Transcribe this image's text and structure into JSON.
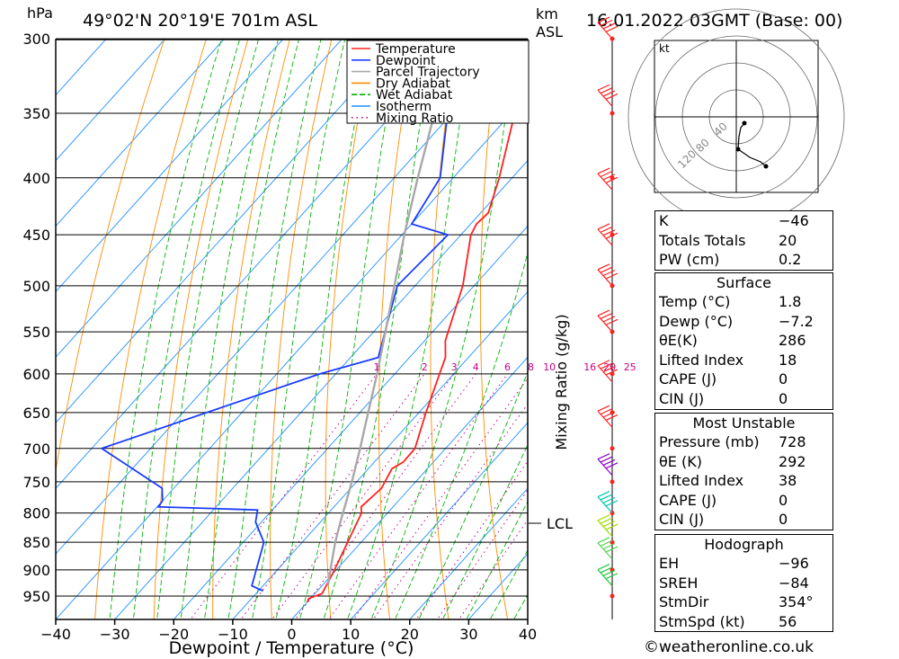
{
  "header": {
    "hpa": "hPa",
    "location": "49°02'N  20°19'E  701m  ASL",
    "km": "km",
    "asl": "ASL",
    "datetime": "16.01.2022  03GMT  (Base: 00)"
  },
  "legend": [
    {
      "label": "Temperature",
      "color": "#ff2020"
    },
    {
      "label": "Dewpoint",
      "color": "#1a3cff"
    },
    {
      "label": "Parcel Trajectory",
      "color": "#a8a8a8"
    },
    {
      "label": "Dry Adiabat",
      "color": "#ff8c00"
    },
    {
      "label": "Wet Adiabat",
      "color": "#00b400"
    },
    {
      "label": "Isotherm",
      "color": "#1e90ff"
    },
    {
      "label": "Mixing Ratio",
      "color": "#c8008c"
    }
  ],
  "chart_data": {
    "type": "line",
    "subtype": "skew-T log-p",
    "xlabel": "Dewpoint / Temperature (°C)",
    "right_label": "Mixing Ratio (g/kg)",
    "pressure_levels": [
      300,
      350,
      400,
      450,
      500,
      550,
      600,
      650,
      700,
      750,
      800,
      850,
      900,
      950
    ],
    "x_ticks": [
      -40,
      -30,
      -20,
      -10,
      0,
      10,
      20,
      30,
      40
    ],
    "x_tick_labels": [
      "−40",
      "−30",
      "−20",
      "−10",
      "0",
      "10",
      "20",
      "30",
      "40"
    ],
    "mixing_ratio_labels": [
      "1",
      "2",
      "3",
      "4",
      "6",
      "8",
      "10",
      "16",
      "20",
      "25"
    ],
    "mixing_ratio_values": [
      1,
      2,
      3,
      4,
      6,
      8,
      10,
      16,
      20,
      25
    ],
    "lcl_label": "LCL",
    "lcl_pressure": 812,
    "series": [
      {
        "name": "Temperature",
        "color": "#ff2020",
        "points": [
          [
            962,
            0.0
          ],
          [
            955,
            -0.3
          ],
          [
            945,
            1.2
          ],
          [
            900,
            -0.3
          ],
          [
            850,
            -2.3
          ],
          [
            800,
            -4.4
          ],
          [
            790,
            -5.4
          ],
          [
            760,
            -4.8
          ],
          [
            730,
            -6.0
          ],
          [
            720,
            -5.1
          ],
          [
            700,
            -5.2
          ],
          [
            650,
            -8.8
          ],
          [
            600,
            -12.4
          ],
          [
            580,
            -13.9
          ],
          [
            560,
            -16.5
          ],
          [
            500,
            -21.9
          ],
          [
            450,
            -28.3
          ],
          [
            440,
            -29.0
          ],
          [
            430,
            -28.7
          ],
          [
            400,
            -32.2
          ],
          [
            350,
            -39.4
          ],
          [
            300,
            -48.4
          ]
        ]
      },
      {
        "name": "Dewpoint",
        "color": "#1a3cff",
        "points": [
          [
            940,
            -9.2
          ],
          [
            930,
            -11.9
          ],
          [
            850,
            -16.5
          ],
          [
            815,
            -21.0
          ],
          [
            795,
            -22.5
          ],
          [
            793,
            -29.0
          ],
          [
            790,
            -39.8
          ],
          [
            780,
            -40.0
          ],
          [
            760,
            -42.0
          ],
          [
            700,
            -58.3
          ],
          [
            600,
            -32.7
          ],
          [
            580,
            -25.3
          ],
          [
            500,
            -33.0
          ],
          [
            450,
            -32.2
          ],
          [
            440,
            -40.0
          ],
          [
            400,
            -42.2
          ],
          [
            300,
            -60.7
          ]
        ]
      },
      {
        "name": "Parcel Trajectory",
        "color": "#a8a8a8",
        "points": [
          [
            930,
            1.0
          ],
          [
            900,
            -1.0
          ],
          [
            850,
            -4.4
          ],
          [
            812,
            -6.8
          ],
          [
            750,
            -10.8
          ],
          [
            700,
            -14.5
          ],
          [
            650,
            -18.6
          ],
          [
            600,
            -23.0
          ],
          [
            550,
            -28.0
          ],
          [
            500,
            -33.5
          ],
          [
            450,
            -39.6
          ],
          [
            400,
            -46.0
          ],
          [
            350,
            -53.0
          ],
          [
            300,
            -61.0
          ]
        ]
      }
    ]
  },
  "hodograph": {
    "kt_label": "kt",
    "ring_labels": [
      "40",
      "80",
      "120"
    ]
  },
  "stats": {
    "indices": [
      {
        "label": "K",
        "value": "−46"
      },
      {
        "label": "Totals Totals",
        "value": "20"
      },
      {
        "label": "PW (cm)",
        "value": "0.2"
      }
    ],
    "surface_title": "Surface",
    "surface": [
      {
        "label": "Temp (°C)",
        "value": "1.8"
      },
      {
        "label": "Dewp (°C)",
        "value": "−7.2"
      },
      {
        "label": "θE(K)",
        "value": "286"
      },
      {
        "label": "Lifted Index",
        "value": "18"
      },
      {
        "label": "CAPE (J)",
        "value": "0"
      },
      {
        "label": "CIN (J)",
        "value": "0"
      }
    ],
    "mu_title": "Most Unstable",
    "mu": [
      {
        "label": "Pressure (mb)",
        "value": "728"
      },
      {
        "label": "θE (K)",
        "value": "292"
      },
      {
        "label": "Lifted Index",
        "value": "38"
      },
      {
        "label": "CAPE (J)",
        "value": "0"
      },
      {
        "label": "CIN (J)",
        "value": "0"
      }
    ],
    "hodo_title": "Hodograph",
    "hodo": [
      {
        "label": "EH",
        "value": "−96"
      },
      {
        "label": "SREH",
        "value": "−84"
      },
      {
        "label": "StmDir",
        "value": "354°"
      },
      {
        "label": "StmSpd (kt)",
        "value": "56"
      }
    ]
  },
  "copyright": "©weatheronline.co.uk"
}
